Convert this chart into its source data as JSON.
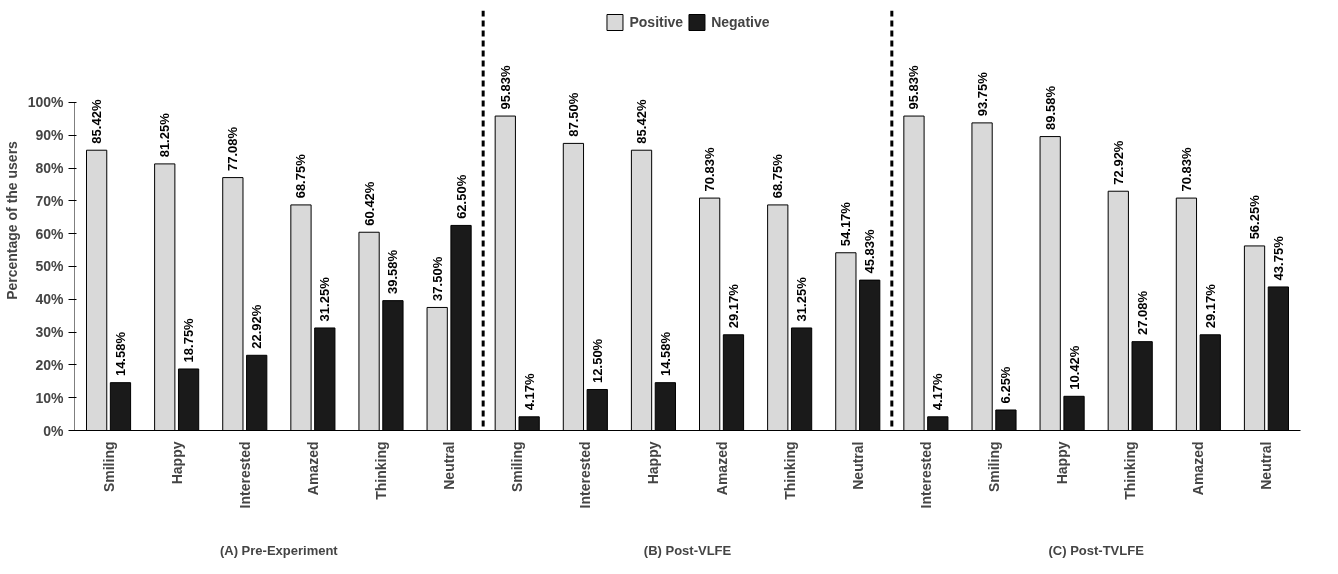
{
  "chart_data": {
    "type": "bar",
    "ylabel": "Percentage of the users",
    "categories": [
      "Smiling",
      "Happy",
      "Interested",
      "Amazed",
      "Thinking",
      "Neutral",
      "Smiling",
      "Interested",
      "Happy",
      "Amazed",
      "Thinking",
      "Neutral",
      "Interested",
      "Smiling",
      "Happy",
      "Thinking",
      "Amazed",
      "Neutral"
    ],
    "series": [
      {
        "name": "Positive",
        "color": "#d9d9d9",
        "values": [
          85.42,
          81.25,
          77.08,
          68.75,
          60.42,
          37.5,
          95.83,
          87.5,
          85.42,
          70.83,
          68.75,
          54.17,
          95.83,
          93.75,
          89.58,
          72.92,
          70.83,
          56.25
        ],
        "value_labels": [
          "85.42%",
          "81.25%",
          "77.08%",
          "68.75%",
          "60.42%",
          "37.50%",
          "95.83%",
          "87.50%",
          "85.42%",
          "70.83%",
          "68.75%",
          "54.17%",
          "95.83%",
          "93.75%",
          "89.58%",
          "72.92%",
          "70.83%",
          "56.25%"
        ]
      },
      {
        "name": "Negative",
        "color": "#1a1a1a",
        "values": [
          14.58,
          18.75,
          22.92,
          31.25,
          39.58,
          62.5,
          4.17,
          12.5,
          14.58,
          29.17,
          31.25,
          45.83,
          4.17,
          6.25,
          10.42,
          27.08,
          29.17,
          43.75
        ],
        "value_labels": [
          "14.58%",
          "18.75%",
          "22.92%",
          "31.25%",
          "39.58%",
          "62.50%",
          "4.17%",
          "12.50%",
          "14.58%",
          "29.17%",
          "31.25%",
          "45.83%",
          "4.17%",
          "6.25%",
          "10.42%",
          "27.08%",
          "29.17%",
          "43.75%"
        ]
      }
    ],
    "annotations": [
      "(A) Pre-Experiment",
      "(B) Post-VLFE",
      "(C) Post-TVLFE"
    ],
    "ylim": [
      0,
      100
    ],
    "yticks": [
      {
        "value": 0,
        "label": "0%"
      },
      {
        "value": 10,
        "label": "10%"
      },
      {
        "value": 20,
        "label": "20%"
      },
      {
        "value": 30,
        "label": "30%"
      },
      {
        "value": 40,
        "label": "40%"
      },
      {
        "value": 50,
        "label": "50%"
      },
      {
        "value": 60,
        "label": "60%"
      },
      {
        "value": 70,
        "label": "70%"
      },
      {
        "value": 80,
        "label": "80%"
      },
      {
        "value": 90,
        "label": "90%"
      },
      {
        "value": 100,
        "label": "100%"
      }
    ],
    "grid": false,
    "legend": "top"
  }
}
